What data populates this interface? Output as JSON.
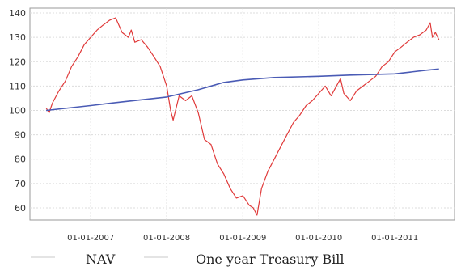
{
  "chart_data": {
    "type": "line",
    "title": "",
    "xlabel": "",
    "ylabel": "",
    "xlim": [
      "2006-03-15",
      "2011-10-15"
    ],
    "ylim": [
      55,
      142
    ],
    "grid": true,
    "legend_placement": "bottom",
    "y_ticks": [
      60,
      70,
      80,
      90,
      100,
      110,
      120,
      130,
      140
    ],
    "x_ticks": [
      "2007-01-01",
      "2008-01-01",
      "2009-01-01",
      "2010-01-01",
      "2011-01-01"
    ],
    "x_tick_labels": [
      "01-01-2007",
      "01-01-2008",
      "01-01-2009",
      "01-01-2010",
      "01-01-2011"
    ],
    "series": [
      {
        "name": "NAV",
        "color": "#e03a3a",
        "x": [
          "2006-06-01",
          "2006-06-15",
          "2006-07-01",
          "2006-08-01",
          "2006-09-01",
          "2006-10-01",
          "2006-11-01",
          "2006-12-01",
          "2007-01-01",
          "2007-02-01",
          "2007-03-01",
          "2007-04-01",
          "2007-05-01",
          "2007-06-01",
          "2007-07-01",
          "2007-07-15",
          "2007-08-01",
          "2007-09-01",
          "2007-10-01",
          "2007-11-01",
          "2007-12-01",
          "2008-01-01",
          "2008-01-20",
          "2008-02-01",
          "2008-03-01",
          "2008-04-01",
          "2008-05-01",
          "2008-06-01",
          "2008-07-01",
          "2008-08-01",
          "2008-09-01",
          "2008-10-01",
          "2008-11-01",
          "2008-12-01",
          "2009-01-01",
          "2009-02-01",
          "2009-02-20",
          "2009-03-10",
          "2009-04-01",
          "2009-05-01",
          "2009-06-01",
          "2009-07-01",
          "2009-08-01",
          "2009-09-01",
          "2009-10-01",
          "2009-11-01",
          "2009-12-01",
          "2010-01-01",
          "2010-02-01",
          "2010-03-01",
          "2010-04-15",
          "2010-05-01",
          "2010-06-01",
          "2010-07-01",
          "2010-08-01",
          "2010-09-01",
          "2010-10-01",
          "2010-11-01",
          "2010-12-01",
          "2011-01-01",
          "2011-02-01",
          "2011-03-01",
          "2011-04-01",
          "2011-05-01",
          "2011-06-01",
          "2011-06-20",
          "2011-07-01",
          "2011-07-15",
          "2011-08-01"
        ],
        "values": [
          101,
          99,
          103,
          108,
          112,
          118,
          122,
          127,
          130,
          133,
          135,
          137,
          138,
          132,
          130,
          133,
          128,
          129,
          126,
          122,
          118,
          110,
          100,
          96,
          106,
          104,
          106,
          99,
          88,
          86,
          78,
          74,
          68,
          64,
          65,
          61,
          60,
          57,
          68,
          75,
          80,
          85,
          90,
          95,
          98,
          102,
          104,
          107,
          110,
          106,
          113,
          107,
          104,
          108,
          110,
          112,
          114,
          118,
          120,
          124,
          126,
          128,
          130,
          131,
          133,
          136,
          130,
          132,
          129
        ]
      },
      {
        "name": "One year Treasury Bill",
        "color": "#4a5bb5",
        "x": [
          "2006-06-01",
          "2007-01-01",
          "2007-06-01",
          "2008-01-01",
          "2008-06-01",
          "2008-10-01",
          "2009-01-01",
          "2009-06-01",
          "2010-01-01",
          "2010-06-01",
          "2011-01-01",
          "2011-06-01",
          "2011-08-01"
        ],
        "values": [
          100,
          102,
          103.5,
          105.5,
          108.5,
          111.5,
          112.5,
          113.5,
          114,
          114.5,
          115,
          116.5,
          117
        ]
      }
    ]
  },
  "legend": {
    "nav": "NAV",
    "tbill": "One year Treasury Bill"
  }
}
